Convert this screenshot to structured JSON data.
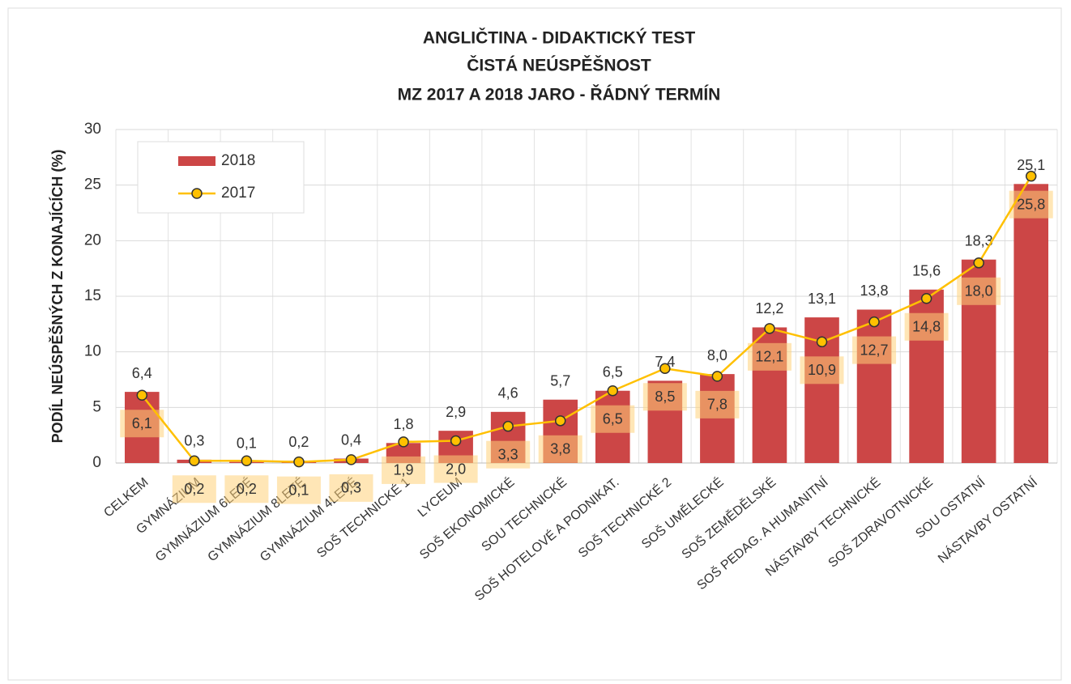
{
  "chart_data": {
    "type": "bar_line",
    "title": [
      "ANGLIČTINA - DIDAKTICKÝ TEST",
      "ČISTÁ NEÚSPĚŠNOST",
      "MZ 2017 A 2018 JARO - ŘÁDNÝ TERMÍN"
    ],
    "ylabel": "PODÍL NEÚSPĚŠNÝCH Z KONAJÍCÍCH (%)",
    "categories": [
      "CELKEM",
      "GYMNÁZIUM",
      "GYMNÁZIUM 6LETÉ",
      "GYMNÁZIUM 8LETÉ",
      "GYMNÁZIUM 4LETÉ",
      "SOŠ TECHNICKÉ 1",
      "LYCEUM",
      "SOŠ EKONOMICKÉ",
      "SOU TECHNICKÉ",
      "SOŠ HOTELOVÉ A PODNIKAT.",
      "SOŠ TECHNICKÉ 2",
      "SOŠ UMĚLECKÉ",
      "SOŠ ZEMĚDĚLSKÉ",
      "SOŠ PEDAG. A HUMANITNÍ",
      "NÁSTAVBY TECHNICKÉ",
      "SOŠ ZDRAVOTNICKÉ",
      "SOU OSTATNÍ",
      "NÁSTAVBY OSTATNÍ"
    ],
    "series": [
      {
        "name": "2018",
        "type": "bar",
        "color": "#cc4646",
        "values": [
          6.4,
          0.3,
          0.1,
          0.2,
          0.4,
          1.8,
          2.9,
          4.6,
          5.7,
          6.5,
          7.4,
          8.0,
          12.2,
          13.1,
          13.8,
          15.6,
          18.3,
          25.1
        ],
        "value_labels": [
          "6,4",
          "0,3",
          "0,1",
          "0,2",
          "0,4",
          "1,8",
          "2,9",
          "4,6",
          "5,7",
          "6,5",
          "7,4",
          "8,0",
          "12,2",
          "13,1",
          "13,8",
          "15,6",
          "18,3",
          "25,1"
        ]
      },
      {
        "name": "2017",
        "type": "line",
        "color": "#ffc000",
        "values": [
          6.1,
          0.2,
          0.2,
          0.1,
          0.3,
          1.9,
          2.0,
          3.3,
          3.8,
          6.5,
          8.5,
          7.8,
          12.1,
          10.9,
          12.7,
          14.8,
          18.0,
          25.8
        ],
        "value_labels": [
          "6,1",
          "0,2",
          "0,2",
          "0,1",
          "0,3",
          "1,9",
          "2,0",
          "3,3",
          "3,8",
          "6,5",
          "8,5",
          "7,8",
          "12,1",
          "10,9",
          "12,7",
          "14,8",
          "18,0",
          "25,8"
        ]
      }
    ],
    "ylim": [
      0,
      30
    ],
    "yticks": [
      0,
      5,
      10,
      15,
      20,
      25,
      30
    ],
    "grid": true,
    "legend": "upper left"
  }
}
